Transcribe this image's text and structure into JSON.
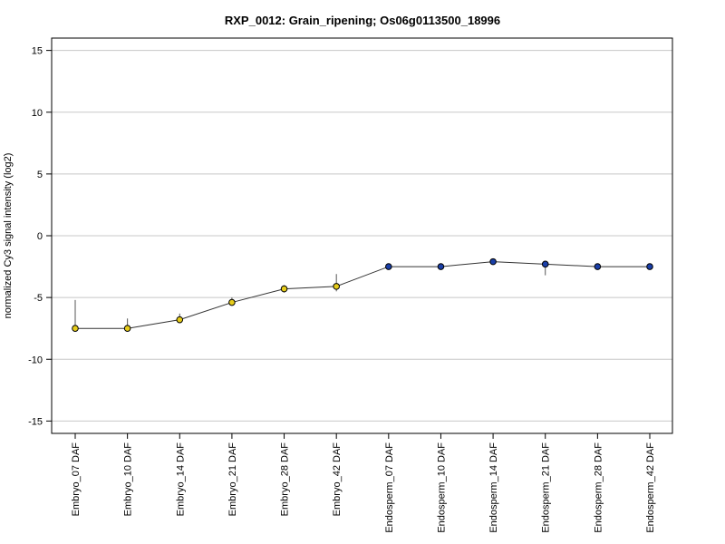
{
  "chart_data": {
    "type": "line",
    "title": "RXP_0012: Grain_ripening; Os06g0113500_18996",
    "xlabel": "",
    "ylabel": "normalized Cy3 signal intensity (log2)",
    "ylim": [
      -16,
      16
    ],
    "yticks": [
      15,
      10,
      5,
      0,
      -5,
      -10,
      -15
    ],
    "grid": true,
    "categories": [
      "Embryo_07 DAF",
      "Embryo_10 DAF",
      "Embryo_14 DAF",
      "Embryo_21 DAF",
      "Embryo_28 DAF",
      "Embryo_42 DAF",
      "Endosperm_07 DAF",
      "Endosperm_10 DAF",
      "Endosperm_14 DAF",
      "Endosperm_21 DAF",
      "Endosperm_28 DAF",
      "Endosperm_42 DAF"
    ],
    "values": [
      -7.5,
      -7.5,
      -6.8,
      -5.4,
      -4.3,
      -4.1,
      -2.5,
      -2.5,
      -2.1,
      -2.3,
      -2.5,
      -2.5
    ],
    "error_high": [
      -5.2,
      -6.7,
      -6.3,
      -5.0,
      -4.0,
      -3.1,
      -2.4,
      -2.4,
      -2.0,
      -2.2,
      -2.4,
      -2.4
    ],
    "error_low": [
      -7.6,
      -7.6,
      -6.9,
      -5.5,
      -4.6,
      -4.5,
      -2.6,
      -2.6,
      -2.2,
      -3.2,
      -2.6,
      -2.6
    ],
    "point_colors": [
      "#e6cc1a",
      "#e6cc1a",
      "#e6cc1a",
      "#e6cc1a",
      "#e6cc1a",
      "#e6cc1a",
      "#1a3fa8",
      "#1a3fa8",
      "#1a3fa8",
      "#1a3fa8",
      "#1a3fa8",
      "#1a3fa8"
    ],
    "line_color": "#333333",
    "grid_color": "#c8c8c8"
  }
}
